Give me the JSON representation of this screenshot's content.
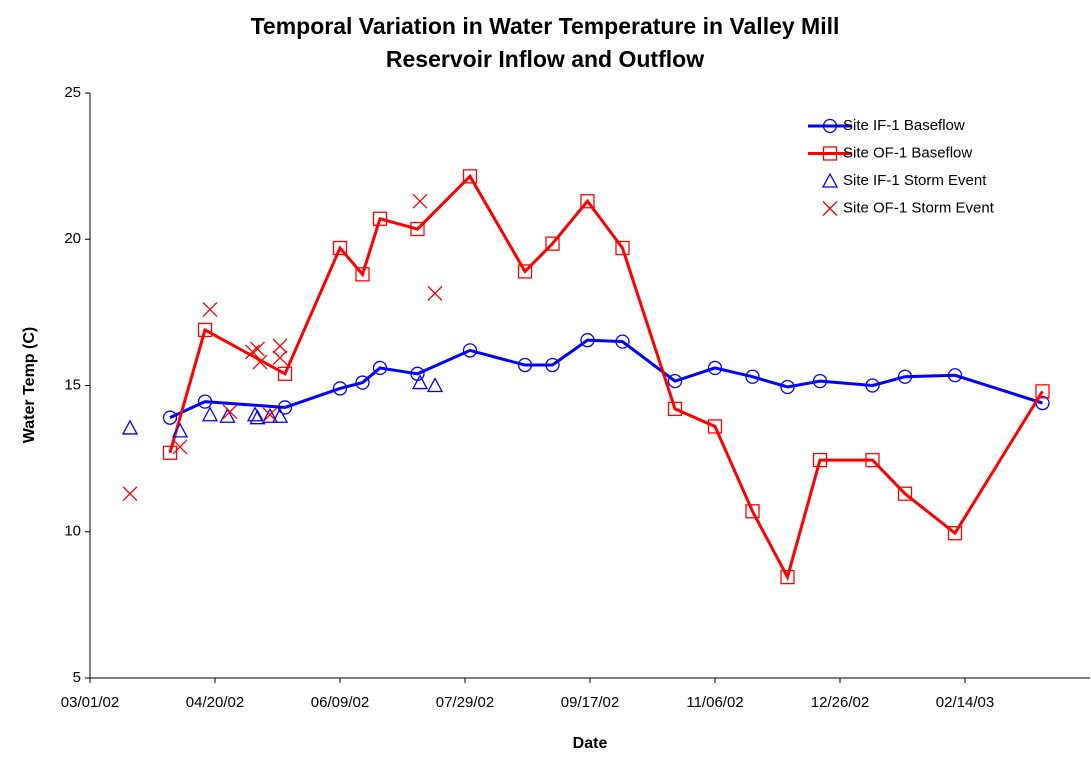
{
  "chart_data": {
    "type": "line",
    "title": "Temporal Variation in Water Temperature in Valley Mill",
    "subtitle": "Reservoir Inflow and Outflow",
    "x_label": "Date",
    "y_label": "Water Temp (C)",
    "xlim": [
      "2002-03-01",
      "2003-04-05"
    ],
    "xticks": [
      {
        "value": "2002-03-01",
        "label": "03/01/02"
      },
      {
        "value": "2002-04-20",
        "label": "04/20/02"
      },
      {
        "value": "2002-06-09",
        "label": "06/09/02"
      },
      {
        "value": "2002-07-29",
        "label": "07/29/02"
      },
      {
        "value": "2002-09-17",
        "label": "09/17/02"
      },
      {
        "value": "2002-11-06",
        "label": "11/06/02"
      },
      {
        "value": "2002-12-26",
        "label": "12/26/02"
      },
      {
        "value": "2003-02-14",
        "label": "02/14/03"
      }
    ],
    "ylim": [
      5,
      25
    ],
    "yticks": [
      5,
      10,
      15,
      20,
      25
    ],
    "legend": "upper right",
    "series": [
      {
        "name": "Site IF-1 Baseflow",
        "color": "#0000ff",
        "marker": "circle",
        "line": true,
        "x": [
          "2002-04-02",
          "2002-04-16",
          "2002-05-18",
          "2002-06-09",
          "2002-06-18",
          "2002-06-25",
          "2002-07-10",
          "2002-07-31",
          "2002-08-22",
          "2002-09-02",
          "2002-09-16",
          "2002-09-30",
          "2002-10-21",
          "2002-11-06",
          "2002-11-21",
          "2002-12-05",
          "2002-12-18",
          "2003-01-08",
          "2003-01-21",
          "2003-02-10",
          "2003-03-17"
        ],
        "values": [
          13.9,
          14.45,
          14.25,
          14.9,
          15.1,
          15.6,
          15.4,
          16.2,
          15.7,
          15.7,
          16.55,
          16.5,
          15.15,
          15.6,
          15.3,
          14.95,
          15.15,
          15.0,
          15.3,
          15.35,
          14.4
        ]
      },
      {
        "name": "Site OF-1 Baseflow",
        "color": "#ff0000",
        "marker": "square",
        "line": true,
        "x": [
          "2002-04-02",
          "2002-04-16",
          "2002-05-18",
          "2002-06-09",
          "2002-06-18",
          "2002-06-25",
          "2002-07-10",
          "2002-07-31",
          "2002-08-22",
          "2002-09-02",
          "2002-09-16",
          "2002-09-30",
          "2002-10-21",
          "2002-11-06",
          "2002-11-21",
          "2002-12-05",
          "2002-12-18",
          "2003-01-08",
          "2003-01-21",
          "2003-02-10",
          "2003-03-17"
        ],
        "values": [
          12.7,
          16.9,
          15.4,
          19.7,
          18.8,
          20.7,
          20.35,
          22.15,
          18.9,
          19.85,
          21.3,
          19.7,
          14.2,
          13.6,
          10.7,
          8.45,
          12.45,
          12.45,
          11.3,
          9.95,
          14.8
        ]
      },
      {
        "name": "Site IF-1 Storm Event",
        "color": "#0000ff",
        "marker": "triangle",
        "line": false,
        "x": [
          "2002-03-17",
          "2002-04-06",
          "2002-04-18",
          "2002-04-25",
          "2002-05-06",
          "2002-05-07",
          "2002-05-12",
          "2002-05-16",
          "2002-07-11",
          "2002-07-17"
        ],
        "values": [
          13.55,
          13.45,
          14.0,
          13.95,
          14.0,
          13.9,
          13.95,
          13.95,
          15.1,
          15.0
        ]
      },
      {
        "name": "Site OF-1 Storm Event",
        "color": "#ff0000",
        "marker": "x",
        "line": false,
        "x": [
          "2002-03-17",
          "2002-04-06",
          "2002-04-18",
          "2002-04-26",
          "2002-05-05",
          "2002-05-07",
          "2002-05-08",
          "2002-05-12",
          "2002-05-16",
          "2002-05-16",
          "2002-07-11",
          "2002-07-17"
        ],
        "values": [
          11.3,
          12.9,
          17.6,
          14.1,
          16.15,
          16.25,
          15.8,
          14.0,
          16.35,
          15.95,
          21.3,
          18.15
        ]
      }
    ]
  }
}
